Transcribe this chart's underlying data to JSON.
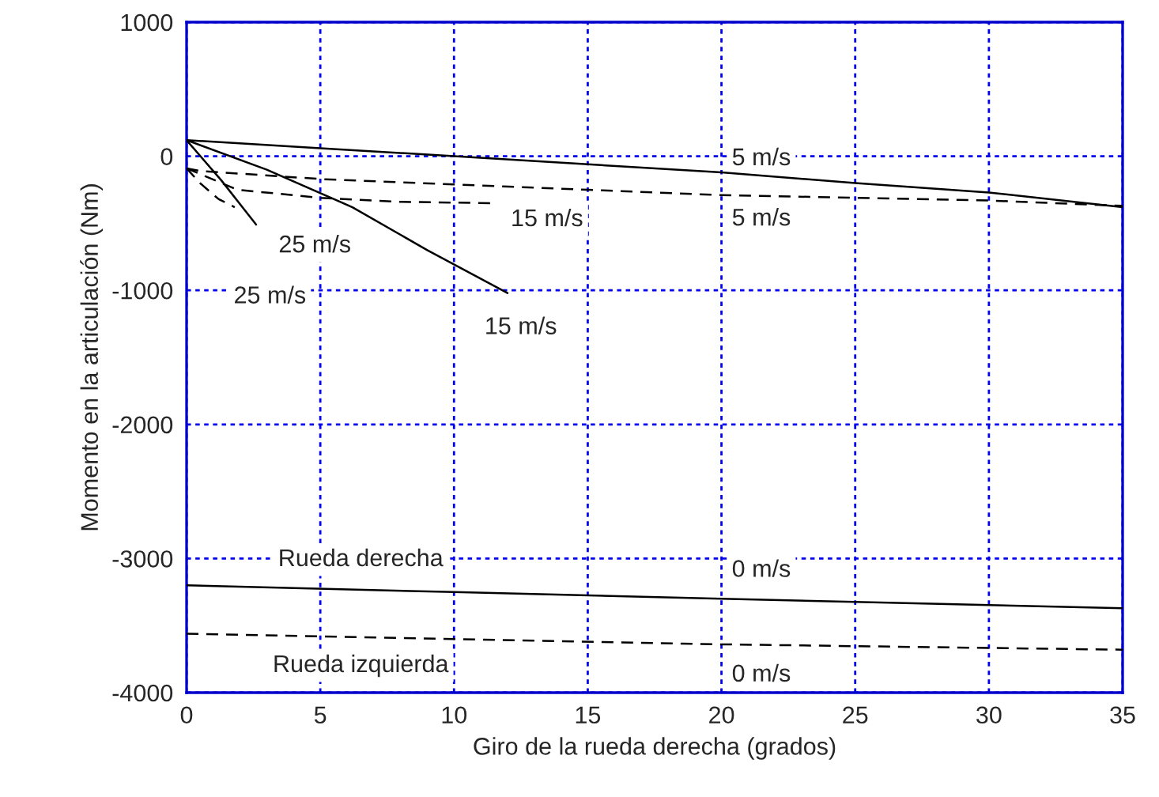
{
  "chart_data": {
    "type": "line",
    "xlabel": "Giro de la rueda derecha (grados)",
    "ylabel": "Momento en la articulación (Nm)",
    "xlim": [
      0,
      35
    ],
    "xticks": [
      0,
      5,
      10,
      15,
      20,
      25,
      30,
      35
    ],
    "ylim": [
      -4000,
      1000
    ],
    "yticks": [
      -4000,
      -3000,
      -2000,
      -1000,
      0,
      1000
    ],
    "grid": true,
    "series": [
      {
        "color": "#000000",
        "line_style": "solid",
        "x": [
          0,
          5,
          10,
          15,
          20,
          25,
          30,
          35
        ],
        "values": [
          120,
          60,
          0,
          -60,
          -120,
          -200,
          -270,
          -380
        ]
      },
      {
        "color": "#000000",
        "line_style": "dashed",
        "x": [
          0,
          0.5,
          5,
          10,
          15,
          20,
          25,
          30,
          35
        ],
        "values": [
          -90,
          -110,
          -170,
          -210,
          -250,
          -290,
          -310,
          -330,
          -370
        ]
      },
      {
        "color": "#000000",
        "line_style": "solid",
        "x": [
          0,
          3,
          6.2,
          9,
          12
        ],
        "values": [
          120,
          -100,
          -380,
          -700,
          -1020
        ]
      },
      {
        "color": "#000000",
        "line_style": "dashed",
        "x": [
          0,
          1.9,
          5,
          8,
          11.4
        ],
        "values": [
          -90,
          -250,
          -310,
          -340,
          -350
        ]
      },
      {
        "color": "#000000",
        "line_style": "solid",
        "x": [
          0,
          1.3,
          2.6
        ],
        "values": [
          120,
          -180,
          -510
        ]
      },
      {
        "color": "#000000",
        "line_style": "dashed",
        "x": [
          0,
          0.5,
          1.2,
          1.8
        ],
        "values": [
          -90,
          -200,
          -320,
          -380
        ]
      },
      {
        "color": "#000000",
        "line_style": "solid",
        "x": [
          0,
          10,
          20,
          35
        ],
        "values": [
          -3200,
          -3250,
          -3300,
          -3370
        ]
      },
      {
        "color": "#000000",
        "line_style": "dashed",
        "x": [
          0,
          10,
          20,
          35
        ],
        "values": [
          -3560,
          -3600,
          -3640,
          -3680
        ]
      }
    ],
    "annotations": [
      "5 m/s",
      "5 m/s",
      "15 m/s",
      "15 m/s",
      "25 m/s",
      "25 m/s",
      "Rueda derecha",
      "0 m/s",
      "Rueda izquierda",
      "0 m/s"
    ]
  }
}
